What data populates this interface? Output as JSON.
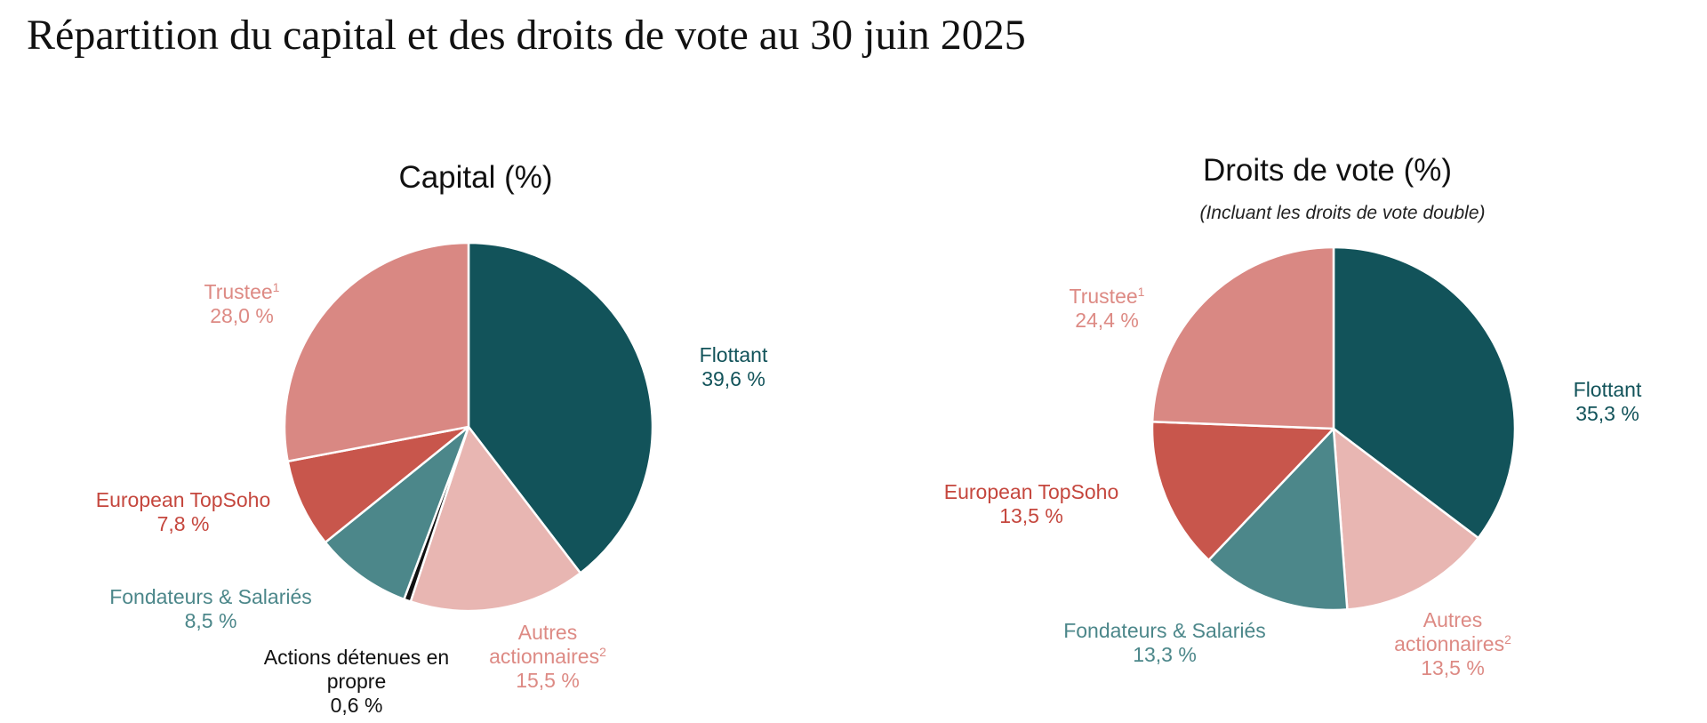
{
  "title": "Répartition du capital et des droits de vote au 30 juin 2025",
  "colors": {
    "flottant": "#12535A",
    "autres": "#E8B6B2",
    "propre": "#111111",
    "fondateurs": "#4C878A",
    "topsoho": "#C8564C",
    "trustee": "#D98883",
    "trustee_text": "#DD8A84",
    "autres_text": "#DD8A84",
    "topsoho_text": "#C5473E",
    "fondateurs_text": "#4C878A",
    "flottant_text": "#12535A"
  },
  "chart_data": [
    {
      "type": "pie",
      "title": "Capital (%)",
      "subtitle": "",
      "slices": [
        {
          "name": "Flottant",
          "sup": "",
          "value": 39.6,
          "value_label": "39,6 %",
          "color_key": "flottant"
        },
        {
          "name": "Autres actionnaires",
          "sup": "2",
          "value": 15.5,
          "value_label": "15,5 %",
          "color_key": "autres"
        },
        {
          "name": "Actions détenues en propre",
          "sup": "",
          "value": 0.6,
          "value_label": "0,6 %",
          "color_key": "propre"
        },
        {
          "name": "Fondateurs & Salariés",
          "sup": "",
          "value": 8.5,
          "value_label": "8,5 %",
          "color_key": "fondateurs"
        },
        {
          "name": "European TopSoho",
          "sup": "",
          "value": 7.8,
          "value_label": "7,8 %",
          "color_key": "topsoho"
        },
        {
          "name": "Trustee",
          "sup": "1",
          "value": 28.0,
          "value_label": "28,0 %",
          "color_key": "trustee"
        }
      ]
    },
    {
      "type": "pie",
      "title": "Droits de vote (%)",
      "subtitle": "(Incluant les droits de vote double)",
      "slices": [
        {
          "name": "Flottant",
          "sup": "",
          "value": 35.3,
          "value_label": "35,3 %",
          "color_key": "flottant"
        },
        {
          "name": "Autres actionnaires",
          "sup": "2",
          "value": 13.5,
          "value_label": "13,5 %",
          "color_key": "autres"
        },
        {
          "name": "Fondateurs & Salariés",
          "sup": "",
          "value": 13.3,
          "value_label": "13,3 %",
          "color_key": "fondateurs"
        },
        {
          "name": "European TopSoho",
          "sup": "",
          "value": 13.5,
          "value_label": "13,5 %",
          "color_key": "topsoho"
        },
        {
          "name": "Trustee",
          "sup": "1",
          "value": 24.4,
          "value_label": "24,4 %",
          "color_key": "trustee"
        }
      ]
    }
  ]
}
